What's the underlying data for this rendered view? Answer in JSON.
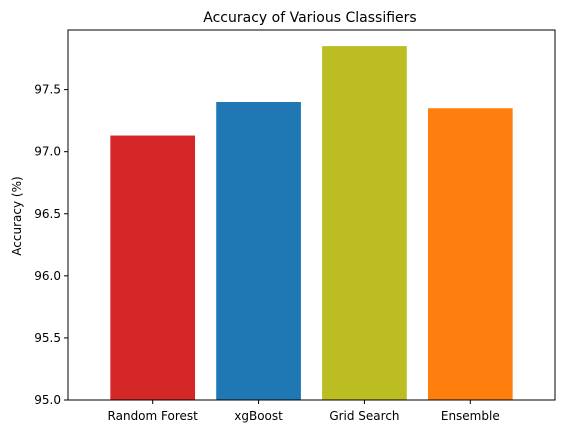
{
  "chart_data": {
    "type": "bar",
    "title": "Accuracy of Various Classifiers",
    "xlabel": "",
    "ylabel": "Accuracy (%)",
    "categories": [
      "Random Forest",
      "xgBoost",
      "Grid Search",
      "Ensemble"
    ],
    "values": [
      97.13,
      97.4,
      97.85,
      97.35
    ],
    "colors": [
      "#d62728",
      "#1f77b4",
      "#bcbd22",
      "#ff7f0e"
    ],
    "ylim": [
      95.0,
      97.98
    ],
    "yticks": [
      95.0,
      95.5,
      96.0,
      96.5,
      97.0,
      97.5
    ],
    "ytick_labels": [
      "95.0",
      "95.5",
      "96.0",
      "96.5",
      "97.0",
      "97.5"
    ],
    "grid": false,
    "legend": "none"
  }
}
